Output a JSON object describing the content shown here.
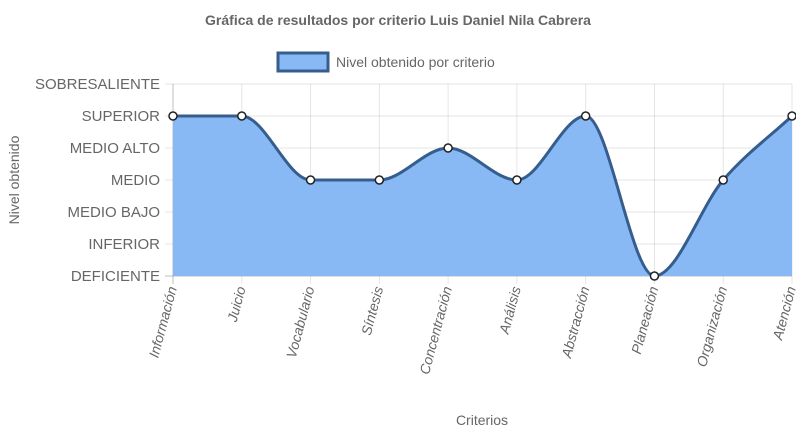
{
  "colors": {
    "fill": "#89b9f5",
    "line": "#355d8d",
    "point_fill": "#ffffff",
    "point_stroke": "#222222",
    "grid": "rgba(0,0,0,0.1)",
    "text": "#666666"
  },
  "chart_data": {
    "type": "area",
    "title": "Gráfica de resultados por criterio Luis Daniel Nila Cabrera",
    "xlabel": "Criterios",
    "ylabel": "Nivel obtenido",
    "legend_position": "top",
    "grid": true,
    "categories": [
      "Información",
      "Juicio",
      "Vocabulario",
      "Síntesis",
      "Concentración",
      "Análisis",
      "Abstracción",
      "Planeación",
      "Organización",
      "Atención"
    ],
    "y_levels": [
      "DEFICIENTE",
      "INFERIOR",
      "MEDIO BAJO",
      "MEDIO",
      "MEDIO ALTO",
      "SUPERIOR",
      "SOBRESALIENTE"
    ],
    "ylim": [
      0,
      6
    ],
    "series": [
      {
        "name": "Nivel obtenido por criterio",
        "values": [
          5,
          5,
          3,
          3,
          4,
          3,
          5,
          0,
          3,
          5
        ]
      }
    ]
  }
}
